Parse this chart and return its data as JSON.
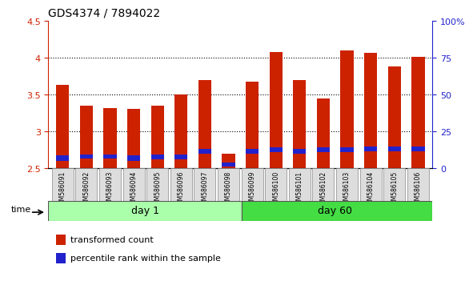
{
  "title": "GDS4374 / 7894022",
  "samples": [
    "GSM586091",
    "GSM586092",
    "GSM586093",
    "GSM586094",
    "GSM586095",
    "GSM586096",
    "GSM586097",
    "GSM586098",
    "GSM586099",
    "GSM586100",
    "GSM586101",
    "GSM586102",
    "GSM586103",
    "GSM586104",
    "GSM586105",
    "GSM586106"
  ],
  "transformed_count": [
    3.63,
    3.35,
    3.31,
    3.3,
    3.35,
    3.5,
    3.7,
    2.7,
    3.67,
    4.08,
    3.7,
    3.45,
    4.1,
    4.07,
    3.88,
    4.01
  ],
  "blue_segment_bottom": [
    2.6,
    2.63,
    2.63,
    2.6,
    2.62,
    2.62,
    2.7,
    2.52,
    2.7,
    2.72,
    2.7,
    2.72,
    2.72,
    2.73,
    2.73,
    2.73
  ],
  "blue_segment_height": [
    0.07,
    0.06,
    0.06,
    0.07,
    0.06,
    0.06,
    0.06,
    0.06,
    0.06,
    0.06,
    0.06,
    0.06,
    0.06,
    0.06,
    0.06,
    0.06
  ],
  "bar_bottom": 2.5,
  "ylim": [
    2.5,
    4.5
  ],
  "right_ylim": [
    0,
    100
  ],
  "right_yticks": [
    0,
    25,
    50,
    75,
    100
  ],
  "right_yticklabels": [
    "0",
    "25",
    "50",
    "75",
    "100%"
  ],
  "yticks": [
    2.5,
    3.0,
    3.5,
    4.0,
    4.5
  ],
  "yticklabels": [
    "2.5",
    "3",
    "3.5",
    "4",
    "4.5"
  ],
  "day1_samples": 8,
  "day60_samples": 8,
  "day1_label": "day 1",
  "day60_label": "day 60",
  "time_label": "time",
  "legend_red_label": "transformed count",
  "legend_blue_label": "percentile rank within the sample",
  "red_color": "#CC2200",
  "blue_color": "#2222CC",
  "day1_color": "#AAFFAA",
  "day60_color": "#44DD44",
  "bar_width": 0.55,
  "grid_color": "black",
  "bg_color": "#FFFFFF"
}
